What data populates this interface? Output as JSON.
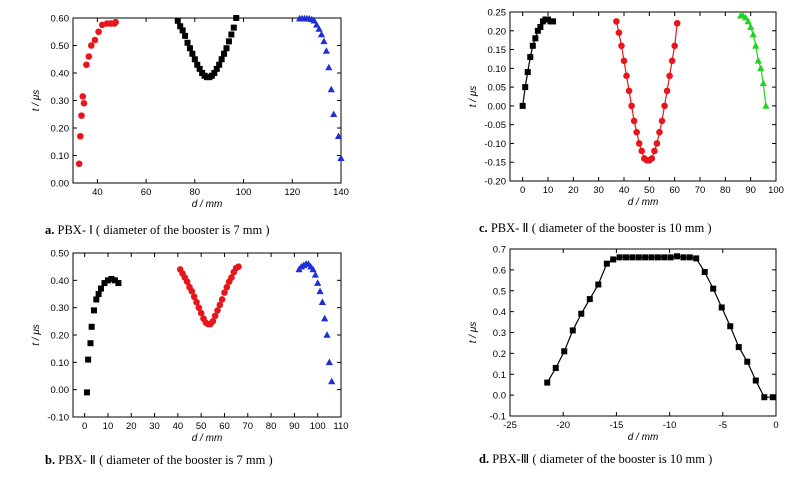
{
  "chart_data": [
    {
      "type": "scatter",
      "panel_label": "a.",
      "caption": "PBX- Ⅰ ( diameter of the booster is 7 mm )",
      "xlabel": "d / mm",
      "ylabel": "t / μs",
      "xlim": [
        30,
        140
      ],
      "ylim": [
        0.0,
        0.6
      ],
      "xticks": [
        "40",
        "60",
        "80",
        "100",
        "120",
        "140"
      ],
      "yticks": [
        "0.00",
        "0.10",
        "0.20",
        "0.30",
        "0.40",
        "0.50",
        "0.60"
      ],
      "xtick_values": [
        40,
        60,
        80,
        100,
        120,
        140
      ],
      "ytick_values": [
        0.0,
        0.1,
        0.2,
        0.3,
        0.4,
        0.5,
        0.6
      ],
      "grid": false,
      "series": [
        {
          "marker": "circle",
          "color": "#e8161c",
          "line": false,
          "x": [
            32.5,
            33,
            33.5,
            34,
            34.5,
            35.5,
            36.5,
            37.5,
            39,
            40.5,
            42,
            44,
            45.5,
            47,
            47.5
          ],
          "y": [
            0.07,
            0.17,
            0.245,
            0.315,
            0.29,
            0.43,
            0.46,
            0.5,
            0.52,
            0.55,
            0.575,
            0.58,
            0.58,
            0.58,
            0.585
          ]
        },
        {
          "marker": "square",
          "color": "#000000",
          "line": false,
          "x": [
            73,
            74,
            75,
            76,
            77,
            78,
            79,
            80,
            81,
            82,
            83,
            84,
            85,
            86,
            87,
            88,
            89,
            90,
            91,
            92,
            93,
            94,
            95,
            96,
            97
          ],
          "y": [
            0.59,
            0.57,
            0.555,
            0.535,
            0.51,
            0.49,
            0.47,
            0.45,
            0.43,
            0.415,
            0.4,
            0.39,
            0.385,
            0.385,
            0.39,
            0.4,
            0.415,
            0.43,
            0.45,
            0.47,
            0.49,
            0.515,
            0.54,
            0.565,
            0.6
          ]
        },
        {
          "marker": "triangle",
          "color": "#1f2fd6",
          "line": false,
          "x": [
            123,
            124,
            125,
            126,
            127,
            128,
            129,
            130,
            131,
            132,
            133,
            134,
            135,
            136,
            137,
            139,
            140
          ],
          "y": [
            0.598,
            0.598,
            0.598,
            0.598,
            0.597,
            0.595,
            0.59,
            0.575,
            0.56,
            0.54,
            0.515,
            0.48,
            0.42,
            0.34,
            0.25,
            0.17,
            0.09
          ]
        }
      ]
    },
    {
      "type": "scatter",
      "panel_label": "b.",
      "caption": "PBX- Ⅱ ( diameter of the booster is 7 mm )",
      "xlabel": "d / mm",
      "ylabel": "t / μs",
      "xlim": [
        -5,
        110
      ],
      "ylim": [
        -0.1,
        0.5
      ],
      "xticks": [
        "0",
        "10",
        "20",
        "30",
        "40",
        "50",
        "60",
        "70",
        "80",
        "90",
        "100",
        "110"
      ],
      "yticks": [
        "-0.10",
        "0.00",
        "0.10",
        "0.20",
        "0.30",
        "0.40",
        "0.50"
      ],
      "xtick_values": [
        0,
        10,
        20,
        30,
        40,
        50,
        60,
        70,
        80,
        90,
        100,
        110
      ],
      "ytick_values": [
        -0.1,
        0.0,
        0.1,
        0.2,
        0.3,
        0.4,
        0.5
      ],
      "grid": false,
      "series": [
        {
          "marker": "square",
          "color": "#000000",
          "line": false,
          "x": [
            1,
            1.5,
            2.5,
            3,
            4,
            5,
            6,
            7,
            8.5,
            10,
            11.5,
            13,
            14.5
          ],
          "y": [
            -0.01,
            0.11,
            0.17,
            0.23,
            0.29,
            0.33,
            0.35,
            0.37,
            0.39,
            0.4,
            0.405,
            0.4,
            0.39
          ]
        },
        {
          "marker": "circle",
          "color": "#e8161c",
          "line": false,
          "x": [
            41,
            42,
            43,
            44,
            45,
            46,
            47,
            48,
            49,
            50,
            51,
            52,
            53,
            54,
            55,
            56,
            57,
            58,
            59,
            60,
            61,
            62,
            63,
            64,
            65,
            66
          ],
          "y": [
            0.44,
            0.425,
            0.41,
            0.395,
            0.375,
            0.36,
            0.34,
            0.32,
            0.3,
            0.28,
            0.26,
            0.245,
            0.24,
            0.24,
            0.25,
            0.27,
            0.29,
            0.31,
            0.33,
            0.355,
            0.375,
            0.395,
            0.41,
            0.43,
            0.445,
            0.45
          ]
        },
        {
          "marker": "triangle",
          "color": "#1f2fd6",
          "line": false,
          "x": [
            92,
            93,
            94,
            95,
            96,
            97,
            98,
            99,
            100,
            101,
            102,
            103,
            104,
            105,
            106
          ],
          "y": [
            0.44,
            0.45,
            0.455,
            0.46,
            0.46,
            0.45,
            0.44,
            0.42,
            0.39,
            0.36,
            0.32,
            0.26,
            0.2,
            0.1,
            0.03
          ]
        }
      ]
    },
    {
      "type": "line",
      "panel_label": "c.",
      "caption": "PBX- Ⅱ ( diameter of the booster is 10 mm )",
      "xlabel": "d / mm",
      "ylabel": "t / μs",
      "xlim": [
        -5,
        100
      ],
      "ylim": [
        -0.2,
        0.25
      ],
      "xticks": [
        "0",
        "10",
        "20",
        "30",
        "40",
        "50",
        "60",
        "70",
        "80",
        "90",
        "100"
      ],
      "yticks": [
        "-0.20",
        "-0.15",
        "-0.10",
        "-0.05",
        "0.00",
        "0.05",
        "0.10",
        "0.15",
        "0.20",
        "0.25"
      ],
      "xtick_values": [
        0,
        10,
        20,
        30,
        40,
        50,
        60,
        70,
        80,
        90,
        100
      ],
      "ytick_values": [
        -0.2,
        -0.15,
        -0.1,
        -0.05,
        0.0,
        0.05,
        0.1,
        0.15,
        0.2,
        0.25
      ],
      "grid": false,
      "series": [
        {
          "marker": "square",
          "color": "#000000",
          "line": true,
          "x": [
            0,
            1,
            2,
            3,
            4,
            5,
            6,
            7,
            8,
            9,
            10,
            11,
            12
          ],
          "y": [
            0.0,
            0.05,
            0.09,
            0.13,
            0.16,
            0.18,
            0.2,
            0.21,
            0.225,
            0.23,
            0.23,
            0.225,
            0.225
          ]
        },
        {
          "marker": "circle",
          "color": "#e8161c",
          "line": true,
          "x": [
            37,
            38,
            39,
            40,
            41,
            42,
            43,
            44,
            45,
            46,
            47,
            48,
            49,
            50,
            51,
            52,
            53,
            54,
            55,
            56,
            57,
            58,
            59,
            60,
            61
          ],
          "y": [
            0.225,
            0.195,
            0.16,
            0.12,
            0.08,
            0.04,
            0.0,
            -0.04,
            -0.07,
            -0.1,
            -0.12,
            -0.14,
            -0.145,
            -0.145,
            -0.14,
            -0.12,
            -0.1,
            -0.07,
            -0.04,
            0.0,
            0.04,
            0.08,
            0.12,
            0.16,
            0.22
          ]
        },
        {
          "marker": "triangle",
          "color": "#20d420",
          "line": true,
          "x": [
            86,
            87,
            88,
            89,
            90,
            91,
            92,
            93,
            94,
            95,
            96
          ],
          "y": [
            0.24,
            0.24,
            0.235,
            0.225,
            0.21,
            0.19,
            0.16,
            0.12,
            0.1,
            0.06,
            0.0
          ]
        }
      ]
    },
    {
      "type": "line",
      "panel_label": "d.",
      "caption": "PBX-Ⅲ ( diameter of the booster is 10 mm )",
      "xlabel": "d / mm",
      "ylabel": "t / μs",
      "xlim": [
        -25,
        0
      ],
      "ylim": [
        -0.1,
        0.7
      ],
      "xticks": [
        "-25",
        "-20",
        "-15",
        "-10",
        "-5",
        "0"
      ],
      "yticks": [
        "-0.1",
        "0.0",
        "0.1",
        "0.2",
        "0.3",
        "0.4",
        "0.5",
        "0.6",
        "0.7"
      ],
      "xtick_values": [
        -25,
        -20,
        -15,
        -10,
        -5,
        0
      ],
      "ytick_values": [
        -0.1,
        0.0,
        0.1,
        0.2,
        0.3,
        0.4,
        0.5,
        0.6,
        0.7
      ],
      "grid": false,
      "series": [
        {
          "marker": "square",
          "color": "#000000",
          "line": true,
          "x": [
            -21.5,
            -20.7,
            -19.9,
            -19.1,
            -18.3,
            -17.5,
            -16.7,
            -15.9,
            -15.3,
            -14.7,
            -14.1,
            -13.5,
            -12.9,
            -12.3,
            -11.7,
            -11.1,
            -10.5,
            -9.9,
            -9.3,
            -8.7,
            -8.1,
            -7.5,
            -6.7,
            -5.9,
            -5.1,
            -4.3,
            -3.5,
            -2.7,
            -1.9,
            -1.1,
            -0.3
          ],
          "y": [
            0.06,
            0.13,
            0.21,
            0.31,
            0.39,
            0.46,
            0.53,
            0.63,
            0.65,
            0.66,
            0.66,
            0.66,
            0.66,
            0.66,
            0.66,
            0.66,
            0.66,
            0.66,
            0.665,
            0.66,
            0.66,
            0.655,
            0.59,
            0.51,
            0.42,
            0.33,
            0.23,
            0.16,
            0.07,
            -0.01,
            -0.01
          ]
        }
      ]
    }
  ]
}
